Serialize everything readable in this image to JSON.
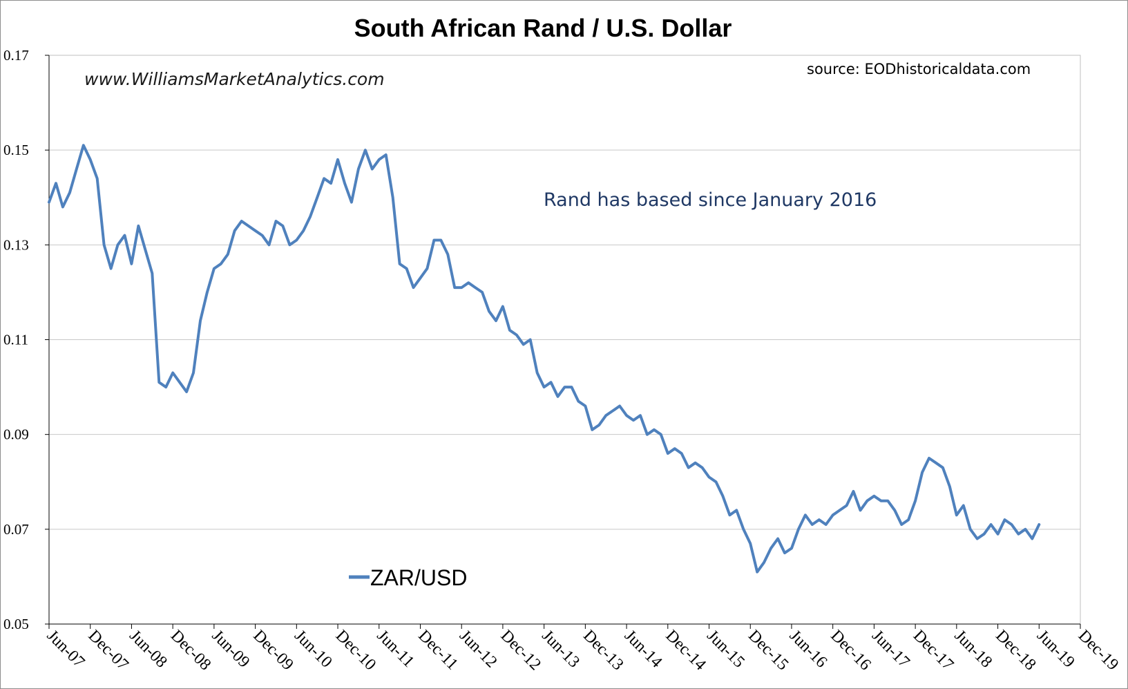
{
  "chart_data": {
    "type": "line",
    "title": "South African Rand / U.S. Dollar",
    "watermark": "www.WilliamsMarketAnalytics.com",
    "source": "source: EODhistoricaldata.com",
    "annotation": "Rand has based since January 2016",
    "ylim": [
      0.05,
      0.17
    ],
    "yticks": [
      "0.05",
      "0.07",
      "0.09",
      "0.11",
      "0.13",
      "0.15",
      "0.17"
    ],
    "xticks": [
      "Jun-07",
      "Dec-07",
      "Jun-08",
      "Dec-08",
      "Jun-09",
      "Dec-09",
      "Jun-10",
      "Dec-10",
      "Jun-11",
      "Dec-11",
      "Jun-12",
      "Dec-12",
      "Jun-13",
      "Dec-13",
      "Jun-14",
      "Dec-14",
      "Jun-15",
      "Dec-15",
      "Jun-16",
      "Dec-16",
      "Jun-17",
      "Dec-17",
      "Jun-18",
      "Dec-18",
      "Jun-19",
      "Dec-19"
    ],
    "grid": true,
    "legend_position": "bottom-left",
    "series": [
      {
        "name": "ZAR/USD",
        "color": "#4f81bd",
        "points": [
          [
            "Jun-07",
            0.139
          ],
          [
            "Jul-07",
            0.143
          ],
          [
            "Aug-07",
            0.138
          ],
          [
            "Sep-07",
            0.141
          ],
          [
            "Oct-07",
            0.146
          ],
          [
            "Nov-07",
            0.151
          ],
          [
            "Dec-07",
            0.148
          ],
          [
            "Jan-08",
            0.144
          ],
          [
            "Feb-08",
            0.13
          ],
          [
            "Mar-08",
            0.125
          ],
          [
            "Apr-08",
            0.13
          ],
          [
            "May-08",
            0.132
          ],
          [
            "Jun-08",
            0.126
          ],
          [
            "Jul-08",
            0.134
          ],
          [
            "Aug-08",
            0.129
          ],
          [
            "Sep-08",
            0.124
          ],
          [
            "Oct-08",
            0.101
          ],
          [
            "Nov-08",
            0.1
          ],
          [
            "Dec-08",
            0.103
          ],
          [
            "Jan-09",
            0.101
          ],
          [
            "Feb-09",
            0.099
          ],
          [
            "Mar-09",
            0.103
          ],
          [
            "Apr-09",
            0.114
          ],
          [
            "May-09",
            0.12
          ],
          [
            "Jun-09",
            0.125
          ],
          [
            "Jul-09",
            0.126
          ],
          [
            "Aug-09",
            0.128
          ],
          [
            "Sep-09",
            0.133
          ],
          [
            "Oct-09",
            0.135
          ],
          [
            "Nov-09",
            0.134
          ],
          [
            "Dec-09",
            0.133
          ],
          [
            "Jan-10",
            0.132
          ],
          [
            "Feb-10",
            0.13
          ],
          [
            "Mar-10",
            0.135
          ],
          [
            "Apr-10",
            0.134
          ],
          [
            "May-10",
            0.13
          ],
          [
            "Jun-10",
            0.131
          ],
          [
            "Jul-10",
            0.133
          ],
          [
            "Aug-10",
            0.136
          ],
          [
            "Sep-10",
            0.14
          ],
          [
            "Oct-10",
            0.144
          ],
          [
            "Nov-10",
            0.143
          ],
          [
            "Dec-10",
            0.148
          ],
          [
            "Jan-11",
            0.143
          ],
          [
            "Feb-11",
            0.139
          ],
          [
            "Mar-11",
            0.146
          ],
          [
            "Apr-11",
            0.15
          ],
          [
            "May-11",
            0.146
          ],
          [
            "Jun-11",
            0.148
          ],
          [
            "Jul-11",
            0.149
          ],
          [
            "Aug-11",
            0.14
          ],
          [
            "Sep-11",
            0.126
          ],
          [
            "Oct-11",
            0.125
          ],
          [
            "Nov-11",
            0.121
          ],
          [
            "Dec-11",
            0.123
          ],
          [
            "Jan-12",
            0.125
          ],
          [
            "Feb-12",
            0.131
          ],
          [
            "Mar-12",
            0.131
          ],
          [
            "Apr-12",
            0.128
          ],
          [
            "May-12",
            0.121
          ],
          [
            "Jun-12",
            0.121
          ],
          [
            "Jul-12",
            0.122
          ],
          [
            "Aug-12",
            0.121
          ],
          [
            "Sep-12",
            0.12
          ],
          [
            "Oct-12",
            0.116
          ],
          [
            "Nov-12",
            0.114
          ],
          [
            "Dec-12",
            0.117
          ],
          [
            "Jan-13",
            0.112
          ],
          [
            "Feb-13",
            0.111
          ],
          [
            "Mar-13",
            0.109
          ],
          [
            "Apr-13",
            0.11
          ],
          [
            "May-13",
            0.103
          ],
          [
            "Jun-13",
            0.1
          ],
          [
            "Jul-13",
            0.101
          ],
          [
            "Aug-13",
            0.098
          ],
          [
            "Sep-13",
            0.1
          ],
          [
            "Oct-13",
            0.1
          ],
          [
            "Nov-13",
            0.097
          ],
          [
            "Dec-13",
            0.096
          ],
          [
            "Jan-14",
            0.091
          ],
          [
            "Feb-14",
            0.092
          ],
          [
            "Mar-14",
            0.094
          ],
          [
            "Apr-14",
            0.095
          ],
          [
            "May-14",
            0.096
          ],
          [
            "Jun-14",
            0.094
          ],
          [
            "Jul-14",
            0.093
          ],
          [
            "Aug-14",
            0.094
          ],
          [
            "Sep-14",
            0.09
          ],
          [
            "Oct-14",
            0.091
          ],
          [
            "Nov-14",
            0.09
          ],
          [
            "Dec-14",
            0.086
          ],
          [
            "Jan-15",
            0.087
          ],
          [
            "Feb-15",
            0.086
          ],
          [
            "Mar-15",
            0.083
          ],
          [
            "Apr-15",
            0.084
          ],
          [
            "May-15",
            0.083
          ],
          [
            "Jun-15",
            0.081
          ],
          [
            "Jul-15",
            0.08
          ],
          [
            "Aug-15",
            0.077
          ],
          [
            "Sep-15",
            0.073
          ],
          [
            "Oct-15",
            0.074
          ],
          [
            "Nov-15",
            0.07
          ],
          [
            "Dec-15",
            0.067
          ],
          [
            "Jan-16",
            0.061
          ],
          [
            "Feb-16",
            0.063
          ],
          [
            "Mar-16",
            0.066
          ],
          [
            "Apr-16",
            0.068
          ],
          [
            "May-16",
            0.065
          ],
          [
            "Jun-16",
            0.066
          ],
          [
            "Jul-16",
            0.07
          ],
          [
            "Aug-16",
            0.073
          ],
          [
            "Sep-16",
            0.071
          ],
          [
            "Oct-16",
            0.072
          ],
          [
            "Nov-16",
            0.071
          ],
          [
            "Dec-16",
            0.073
          ],
          [
            "Jan-17",
            0.074
          ],
          [
            "Feb-17",
            0.075
          ],
          [
            "Mar-17",
            0.078
          ],
          [
            "Apr-17",
            0.074
          ],
          [
            "May-17",
            0.076
          ],
          [
            "Jun-17",
            0.077
          ],
          [
            "Jul-17",
            0.076
          ],
          [
            "Aug-17",
            0.076
          ],
          [
            "Sep-17",
            0.074
          ],
          [
            "Oct-17",
            0.071
          ],
          [
            "Nov-17",
            0.072
          ],
          [
            "Dec-17",
            0.076
          ],
          [
            "Jan-18",
            0.082
          ],
          [
            "Feb-18",
            0.085
          ],
          [
            "Mar-18",
            0.084
          ],
          [
            "Apr-18",
            0.083
          ],
          [
            "May-18",
            0.079
          ],
          [
            "Jun-18",
            0.073
          ],
          [
            "Jul-18",
            0.075
          ],
          [
            "Aug-18",
            0.07
          ],
          [
            "Sep-18",
            0.068
          ],
          [
            "Oct-18",
            0.069
          ],
          [
            "Nov-18",
            0.071
          ],
          [
            "Dec-18",
            0.069
          ],
          [
            "Jan-19",
            0.072
          ],
          [
            "Feb-19",
            0.071
          ],
          [
            "Mar-19",
            0.069
          ],
          [
            "Apr-19",
            0.07
          ],
          [
            "May-19",
            0.068
          ],
          [
            "Jun-19",
            0.071
          ]
        ]
      }
    ]
  }
}
